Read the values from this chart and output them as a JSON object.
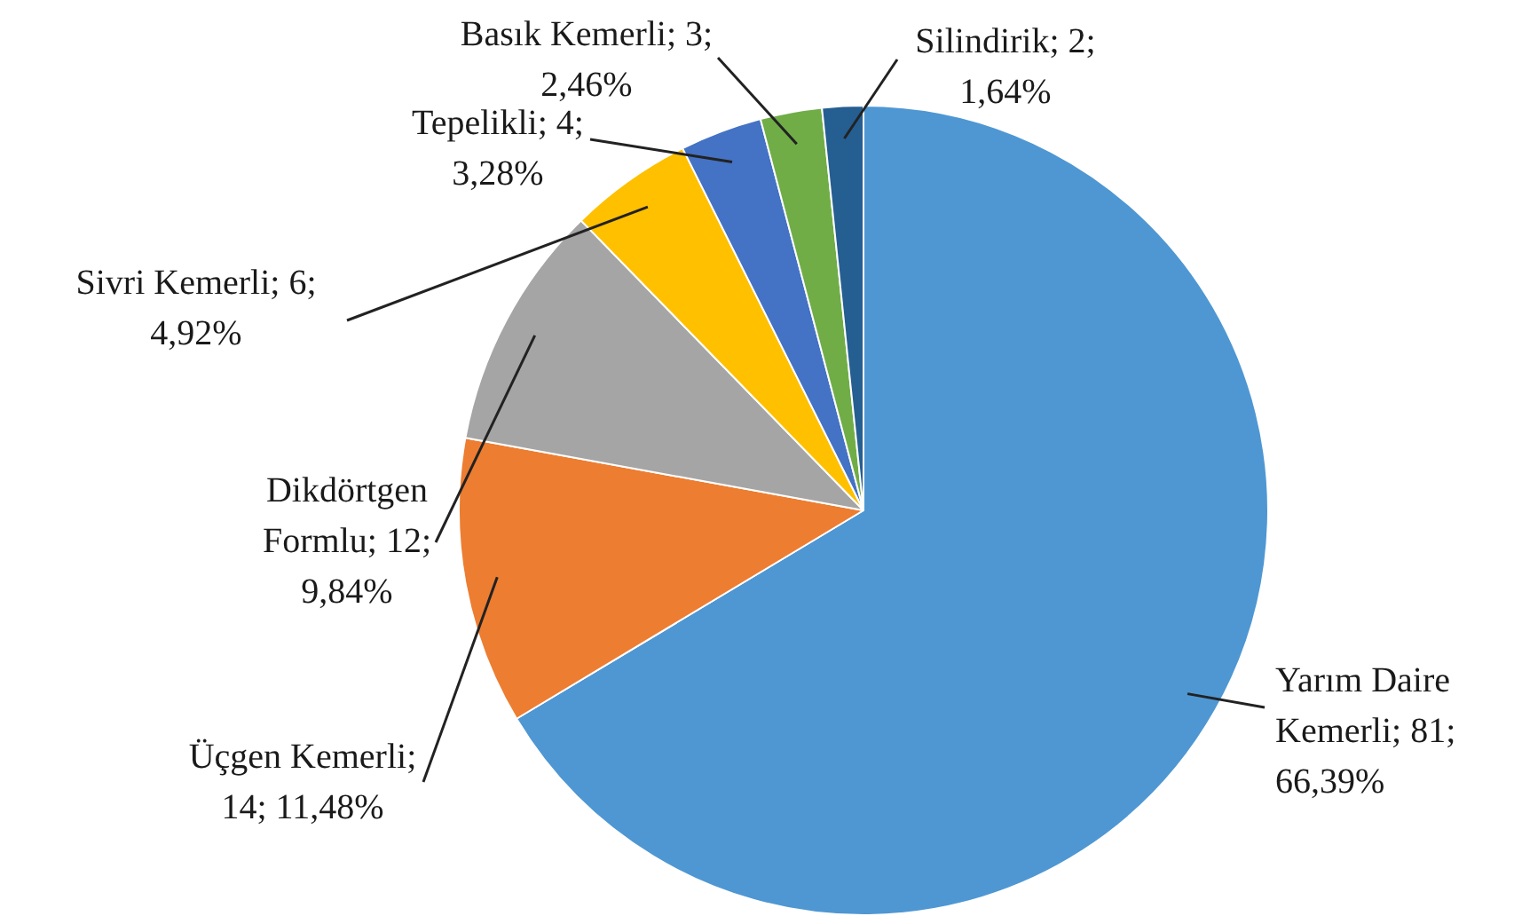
{
  "chart_data": {
    "type": "pie",
    "categories": [
      "Yarım Daire Kemerli; 81; 66,39%",
      "Üçgen Kemerli; 14; 11,48%",
      "Dikdörtgen Formlu; 12; 9,84%",
      "Sivri Kemerli; 6; 4,92%",
      "Tepelikli; 4; 3,28%",
      "Basık Kemerli; 3; 2,46%",
      "Silindirik; 2; 1,64%"
    ],
    "values": [
      81,
      14,
      12,
      6,
      4,
      3,
      2
    ],
    "colors": [
      "#4e97d3",
      "#ed7d31",
      "#a5a5a5",
      "#ffc000",
      "#4472c4",
      "#70ad47",
      "#255e91"
    ]
  }
}
